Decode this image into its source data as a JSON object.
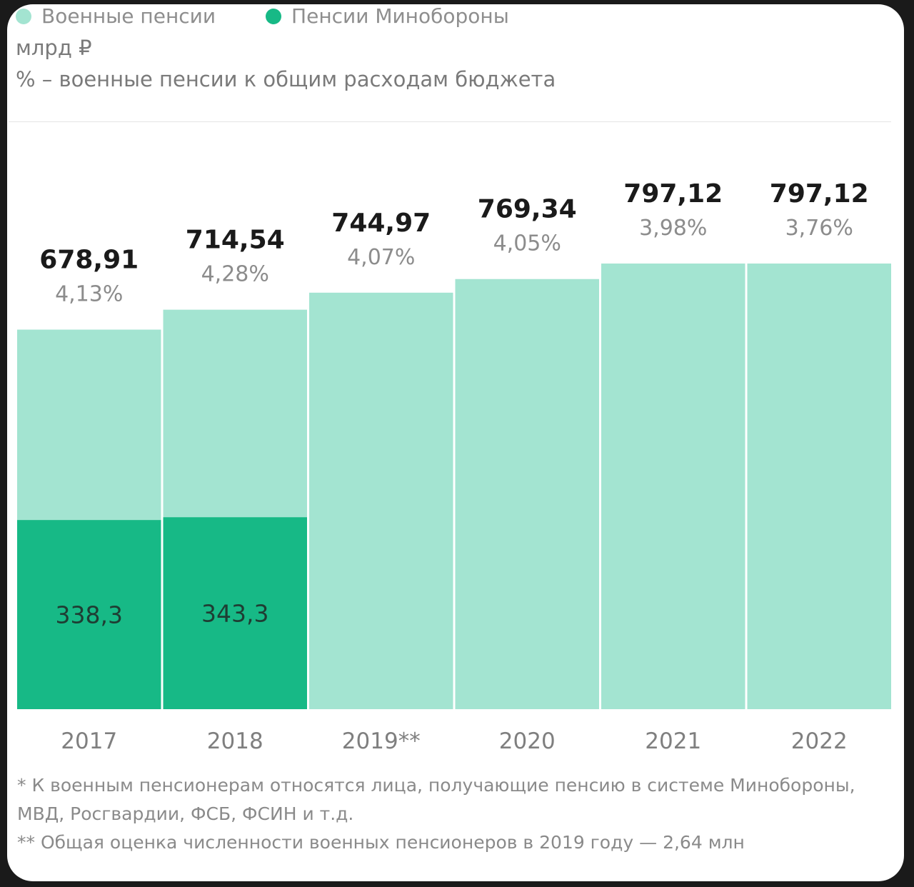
{
  "legend": [
    {
      "label": "Военные пенсии",
      "color": "#a3e4d1"
    },
    {
      "label": "Пенсии Минобороны",
      "color": "#17b986"
    }
  ],
  "units_label": "млрд ₽",
  "percent_note": "% – военные пенсии к общим расходам бюджета",
  "chart_data": {
    "type": "bar",
    "categories": [
      "2017",
      "2018",
      "2019**",
      "2020",
      "2021",
      "2022"
    ],
    "series": [
      {
        "name": "Военные пенсии",
        "values": [
          678.91,
          714.54,
          744.97,
          769.34,
          797.12,
          797.12
        ],
        "labels": [
          "678,91",
          "714,54",
          "744,97",
          "769,34",
          "797,12",
          "797,12"
        ],
        "color": "#a3e4d1"
      },
      {
        "name": "Пенсии Минобороны",
        "values": [
          338.3,
          343.3,
          null,
          null,
          null,
          null
        ],
        "labels": [
          "338,3",
          "343,3",
          "",
          "",
          "",
          ""
        ],
        "color": "#17b986"
      }
    ],
    "percent_labels": [
      "4,13%",
      "4,28%",
      "4,07%",
      "4,05%",
      "3,98%",
      "3,76%"
    ],
    "ylabel": "млрд ₽",
    "grid": false
  },
  "footnotes": [
    "* К военным пенсионерам относятся лица, получающие пенсию в системе Минобороны, МВД, Росгвардии, ФСБ, ФСИН и т.д.",
    "** Общая оценка численности военных пенсионеров в 2019 году — 2,64 млн"
  ]
}
